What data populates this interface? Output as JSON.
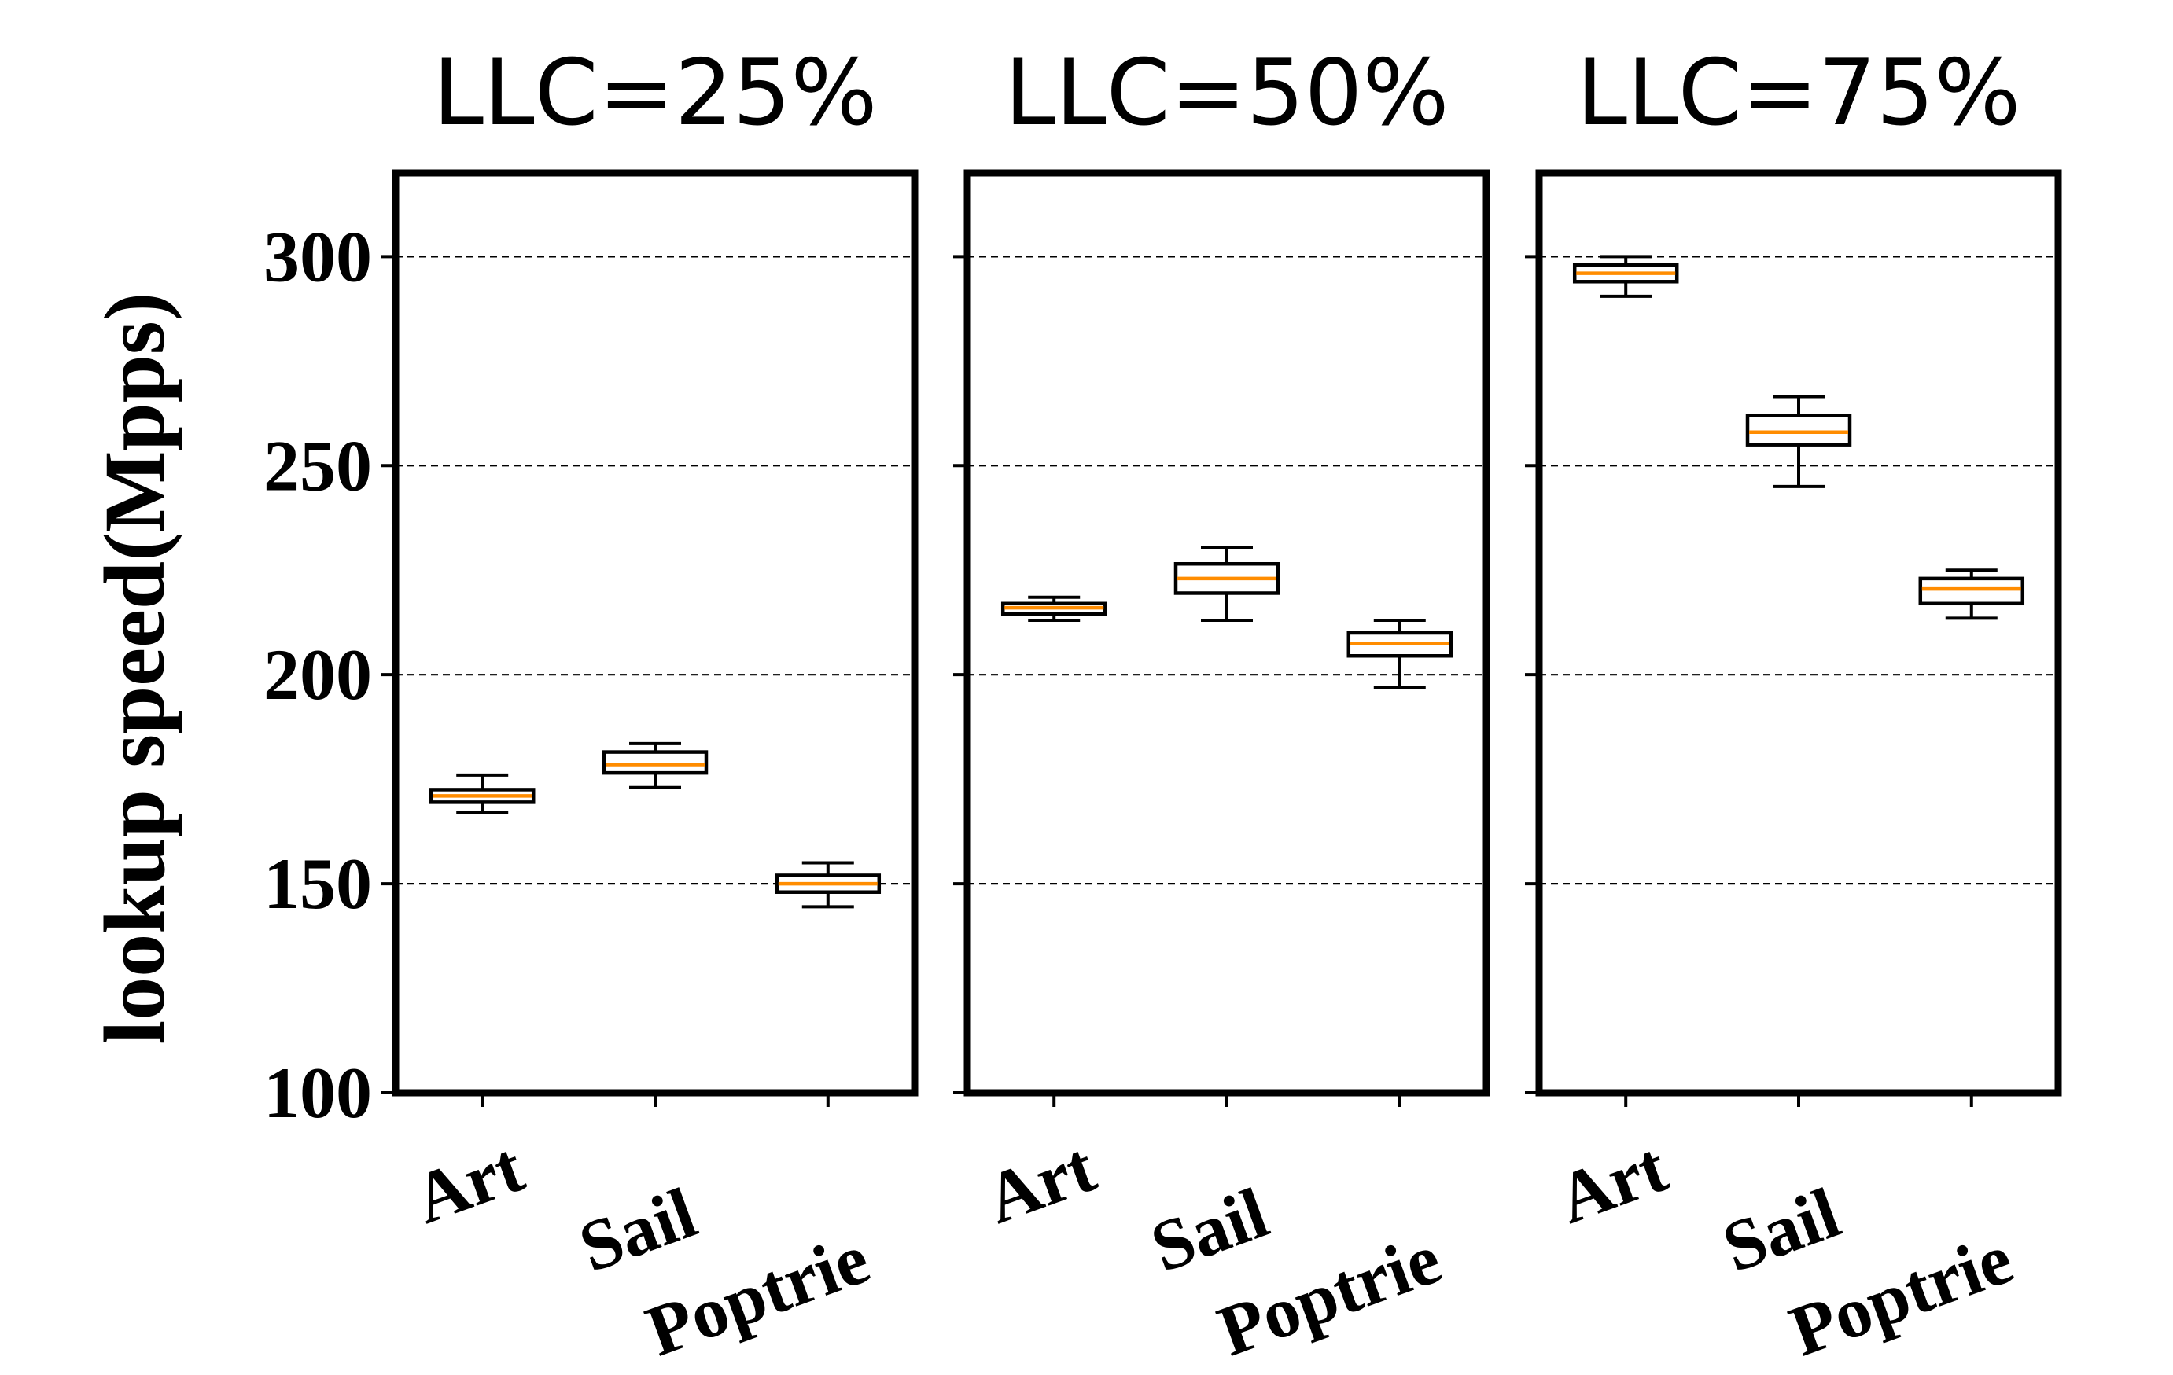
{
  "chart_data": {
    "type": "box",
    "ylabel": "lookup speed(Mpps)",
    "ylim": [
      100,
      320
    ],
    "yticks": [
      100,
      150,
      200,
      250,
      300
    ],
    "grid": {
      "axis": "y",
      "style": "dashed"
    },
    "colors": {
      "box": "#000000",
      "median": "#ff8c00",
      "grid": "#000000"
    },
    "panels": [
      {
        "title": "LLC=25%",
        "categories": [
          "Art",
          "Sail",
          "Poptrie"
        ],
        "boxes": [
          {
            "whisker_low": 167,
            "q1": 169.5,
            "median": 171,
            "q3": 172.5,
            "whisker_high": 176
          },
          {
            "whisker_low": 173,
            "q1": 176.5,
            "median": 178.5,
            "q3": 181.5,
            "whisker_high": 183.5
          },
          {
            "whisker_low": 144.5,
            "q1": 148,
            "median": 150,
            "q3": 152,
            "whisker_high": 155
          }
        ]
      },
      {
        "title": "LLC=50%",
        "categories": [
          "Art",
          "Sail",
          "Poptrie"
        ],
        "boxes": [
          {
            "whisker_low": 213,
            "q1": 214.5,
            "median": 216,
            "q3": 217,
            "whisker_high": 218.5
          },
          {
            "whisker_low": 213,
            "q1": 219.5,
            "median": 223,
            "q3": 226.5,
            "whisker_high": 230.5
          },
          {
            "whisker_low": 197,
            "q1": 204.5,
            "median": 207.5,
            "q3": 210,
            "whisker_high": 213
          }
        ]
      },
      {
        "title": "LLC=75%",
        "categories": [
          "Art",
          "Sail",
          "Poptrie"
        ],
        "boxes": [
          {
            "whisker_low": 290.5,
            "q1": 294,
            "median": 296,
            "q3": 298,
            "whisker_high": 300
          },
          {
            "whisker_low": 245,
            "q1": 255,
            "median": 258,
            "q3": 262,
            "whisker_high": 266.5
          },
          {
            "whisker_low": 213.5,
            "q1": 217,
            "median": 220.5,
            "q3": 223,
            "whisker_high": 225
          }
        ]
      }
    ]
  }
}
